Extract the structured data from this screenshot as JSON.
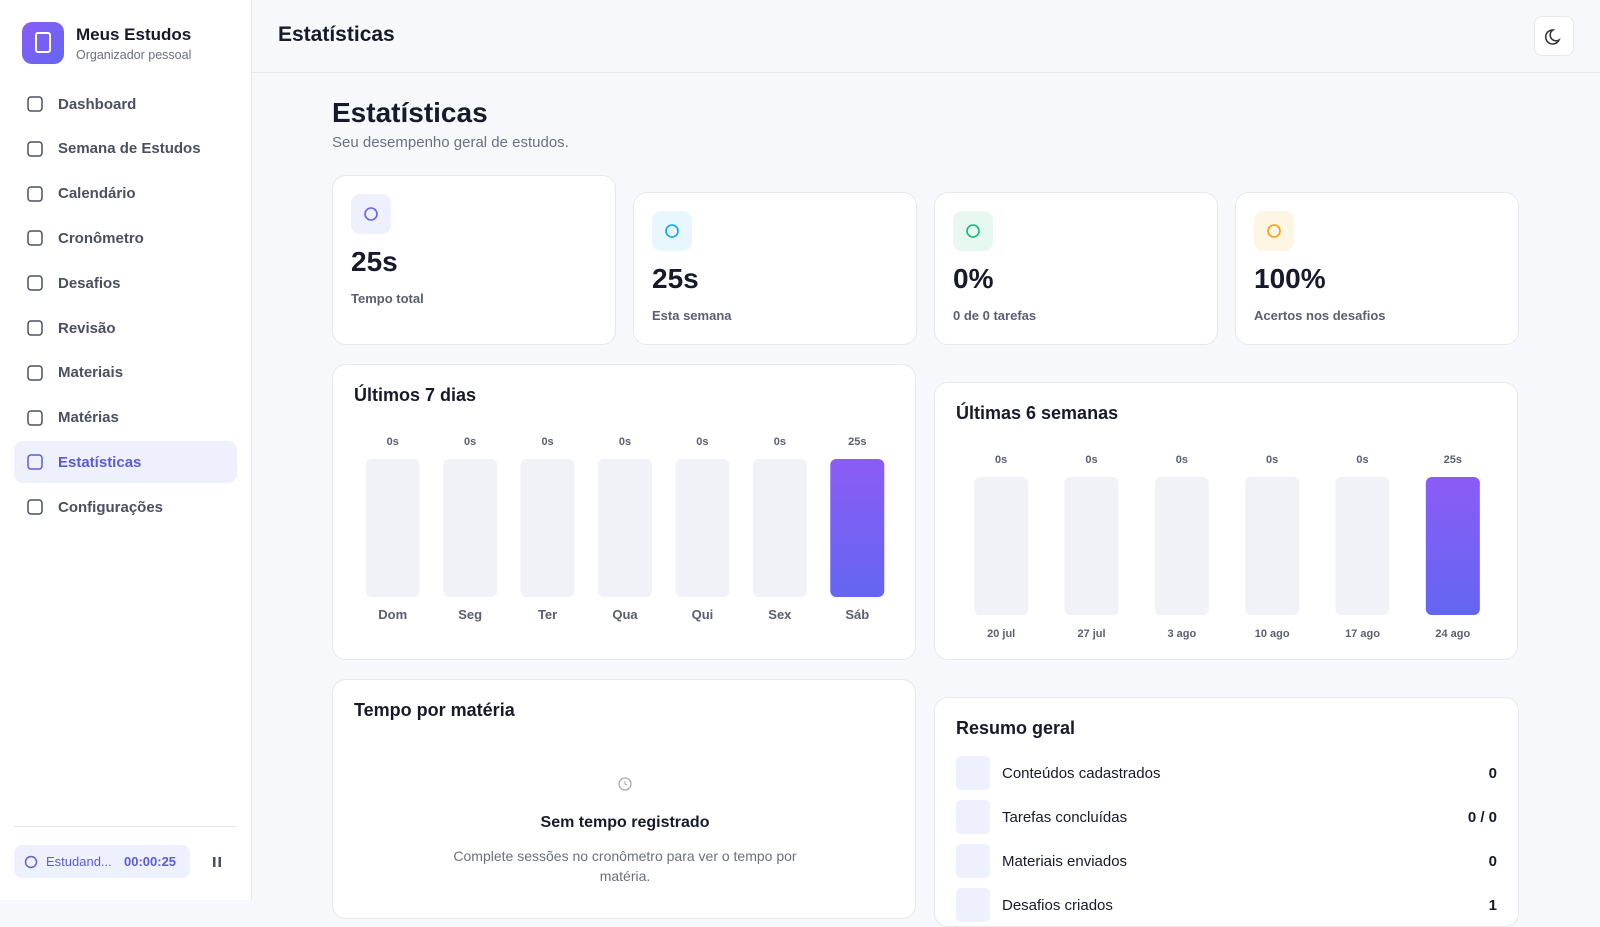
{
  "sidebar": {
    "brand": {
      "title": "Meus Estudos",
      "subtitle": "Organizador pessoal"
    },
    "nav": [
      "Dashboard",
      "Semana de Estudos",
      "Calendário",
      "Cronômetro",
      "Desafios",
      "Revisão",
      "Materiais",
      "Matérias",
      "Estatísticas",
      "Configurações"
    ],
    "active": 8,
    "timer": {
      "label": "Estudand...",
      "time": "00:00:25"
    }
  },
  "header": {
    "title": "Estatísticas"
  },
  "page": {
    "title": "Estatísticas",
    "subtitle": "Seu desempenho geral de estudos."
  },
  "stats": [
    {
      "value": "25s",
      "label": "Tempo total",
      "color": "#6366f1",
      "bg": "#eef0fe"
    },
    {
      "value": "25s",
      "label": "Esta semana",
      "color": "#0ea5e9",
      "bg": "#e8f6fd"
    },
    {
      "value": "0%",
      "label": "0 de 0 tarefas",
      "color": "#10b981",
      "bg": "#e7f8f1"
    },
    {
      "value": "100%",
      "label": "Acertos nos desafios",
      "color": "#f59e0b",
      "bg": "#fef6e4"
    }
  ],
  "charts": [
    {
      "type": "bar",
      "title": "Últimos 7 dias",
      "categories": [
        "Dom",
        "Seg",
        "Ter",
        "Qua",
        "Qui",
        "Sex",
        "Sáb"
      ],
      "values": [
        0,
        0,
        0,
        0,
        0,
        0,
        25
      ],
      "value_labels": [
        "0s",
        "0s",
        "0s",
        "0s",
        "0s",
        "0s",
        "25s"
      ],
      "ylim": [
        0,
        25
      ],
      "color": "#7c5cf4",
      "track": "#f1f2f7"
    },
    {
      "type": "bar",
      "title": "Últimas 6 semanas",
      "categories": [
        "20 jul",
        "27 jul",
        "3 ago",
        "10 ago",
        "17 ago",
        "24 ago"
      ],
      "values": [
        0,
        0,
        0,
        0,
        0,
        25
      ],
      "value_labels": [
        "0s",
        "0s",
        "0s",
        "0s",
        "0s",
        "25s"
      ],
      "ylim": [
        0,
        25
      ],
      "color": "#7c5cf4",
      "track": "#f1f2f7"
    }
  ],
  "subject_time": {
    "title": "Tempo por matéria",
    "empty_title": "Sem tempo registrado",
    "empty_text": "Complete sessões no cronômetro para ver o tempo por matéria."
  },
  "summary": {
    "title": "Resumo geral",
    "rows": [
      {
        "label": "Conteúdos cadastrados",
        "value": "0"
      },
      {
        "label": "Tarefas concluídas",
        "value": "0 / 0"
      },
      {
        "label": "Materiais enviados",
        "value": "0"
      },
      {
        "label": "Desafios criados",
        "value": "1"
      }
    ]
  }
}
